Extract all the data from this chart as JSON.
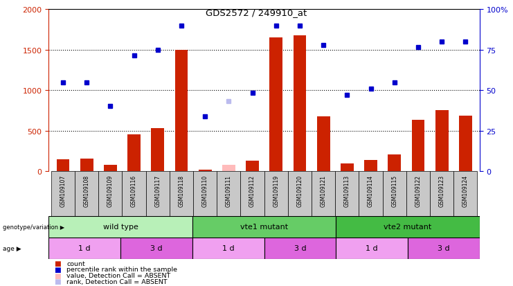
{
  "title": "GDS2572 / 249910_at",
  "samples": [
    "GSM109107",
    "GSM109108",
    "GSM109109",
    "GSM109116",
    "GSM109117",
    "GSM109118",
    "GSM109110",
    "GSM109111",
    "GSM109112",
    "GSM109119",
    "GSM109120",
    "GSM109121",
    "GSM109113",
    "GSM109114",
    "GSM109115",
    "GSM109122",
    "GSM109123",
    "GSM109124"
  ],
  "count_values": [
    150,
    155,
    80,
    460,
    530,
    1500,
    20,
    0,
    130,
    1650,
    1680,
    680,
    100,
    140,
    210,
    640,
    760,
    690
  ],
  "count_absent_idx": 7,
  "count_absent_val": 80,
  "rank_values": [
    1100,
    1100,
    810,
    1430,
    1500,
    1800,
    680,
    null,
    970,
    1800,
    1800,
    1560,
    940,
    1020,
    1100,
    1530,
    1600,
    1600
  ],
  "rank_absent_idx": 7,
  "rank_absent_val": 870,
  "yticks_left": [
    0,
    500,
    1000,
    1500,
    2000
  ],
  "yticks_right_labels": [
    "0",
    "25",
    "50",
    "75",
    "100%"
  ],
  "genotype_groups": [
    {
      "label": "wild type",
      "start": 0,
      "end": 6,
      "color": "#b8f0b8"
    },
    {
      "label": "vte1 mutant",
      "start": 6,
      "end": 12,
      "color": "#66cc66"
    },
    {
      "label": "vte2 mutant",
      "start": 12,
      "end": 18,
      "color": "#44bb44"
    }
  ],
  "age_groups": [
    {
      "label": "1 d",
      "start": 0,
      "end": 3,
      "color": "#f0a0f0"
    },
    {
      "label": "3 d",
      "start": 3,
      "end": 6,
      "color": "#dd66dd"
    },
    {
      "label": "1 d",
      "start": 6,
      "end": 9,
      "color": "#f0a0f0"
    },
    {
      "label": "3 d",
      "start": 9,
      "end": 12,
      "color": "#dd66dd"
    },
    {
      "label": "1 d",
      "start": 12,
      "end": 15,
      "color": "#f0a0f0"
    },
    {
      "label": "3 d",
      "start": 15,
      "end": 18,
      "color": "#dd66dd"
    }
  ],
  "bar_color": "#cc2200",
  "dot_color": "#0000cc",
  "absent_bar_color": "#ffbbbb",
  "absent_dot_color": "#bbbbee",
  "sample_bg_color": "#c8c8c8",
  "left_axis_color": "#cc2200",
  "right_axis_color": "#0000cc",
  "legend_items": [
    {
      "color": "#cc2200",
      "label": "count",
      "is_dot": false
    },
    {
      "color": "#0000cc",
      "label": "percentile rank within the sample",
      "is_dot": true
    },
    {
      "color": "#ffbbbb",
      "label": "value, Detection Call = ABSENT",
      "is_dot": false
    },
    {
      "color": "#bbbbee",
      "label": "rank, Detection Call = ABSENT",
      "is_dot": false
    }
  ]
}
